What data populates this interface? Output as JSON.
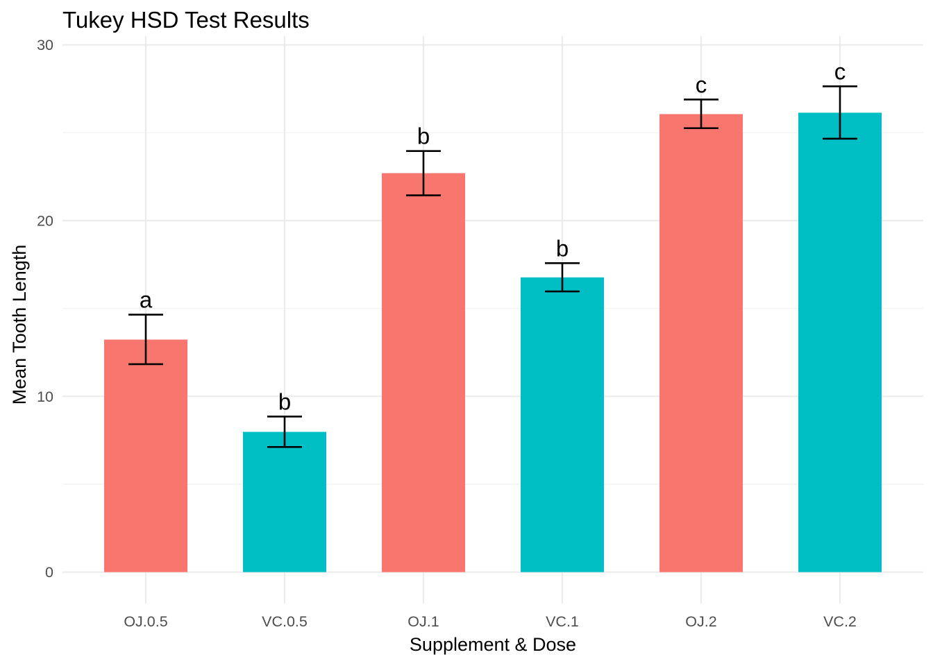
{
  "chart_data": {
    "type": "bar",
    "title": "Tukey HSD Test Results",
    "xlabel": "Supplement & Dose",
    "ylabel": "Mean Tooth Length",
    "categories": [
      "OJ.0.5",
      "VC.0.5",
      "OJ.1",
      "VC.1",
      "OJ.2",
      "VC.2"
    ],
    "values": [
      13.23,
      7.98,
      22.7,
      16.77,
      26.06,
      26.14
    ],
    "error_upper": [
      14.65,
      8.85,
      23.96,
      17.58,
      26.89,
      27.64
    ],
    "error_lower": [
      11.83,
      7.12,
      21.44,
      15.97,
      25.26,
      24.66
    ],
    "significance_labels": [
      "a",
      "b",
      "b",
      "b",
      "c",
      "c"
    ],
    "supplement": [
      "OJ",
      "VC",
      "OJ",
      "VC",
      "OJ",
      "VC"
    ],
    "ylim": [
      -1,
      30.5
    ],
    "yticks": [
      0,
      10,
      20,
      30
    ],
    "grid": true,
    "legend": "none",
    "colors": {
      "OJ": "#F8766D",
      "VC": "#00BFC4"
    }
  }
}
